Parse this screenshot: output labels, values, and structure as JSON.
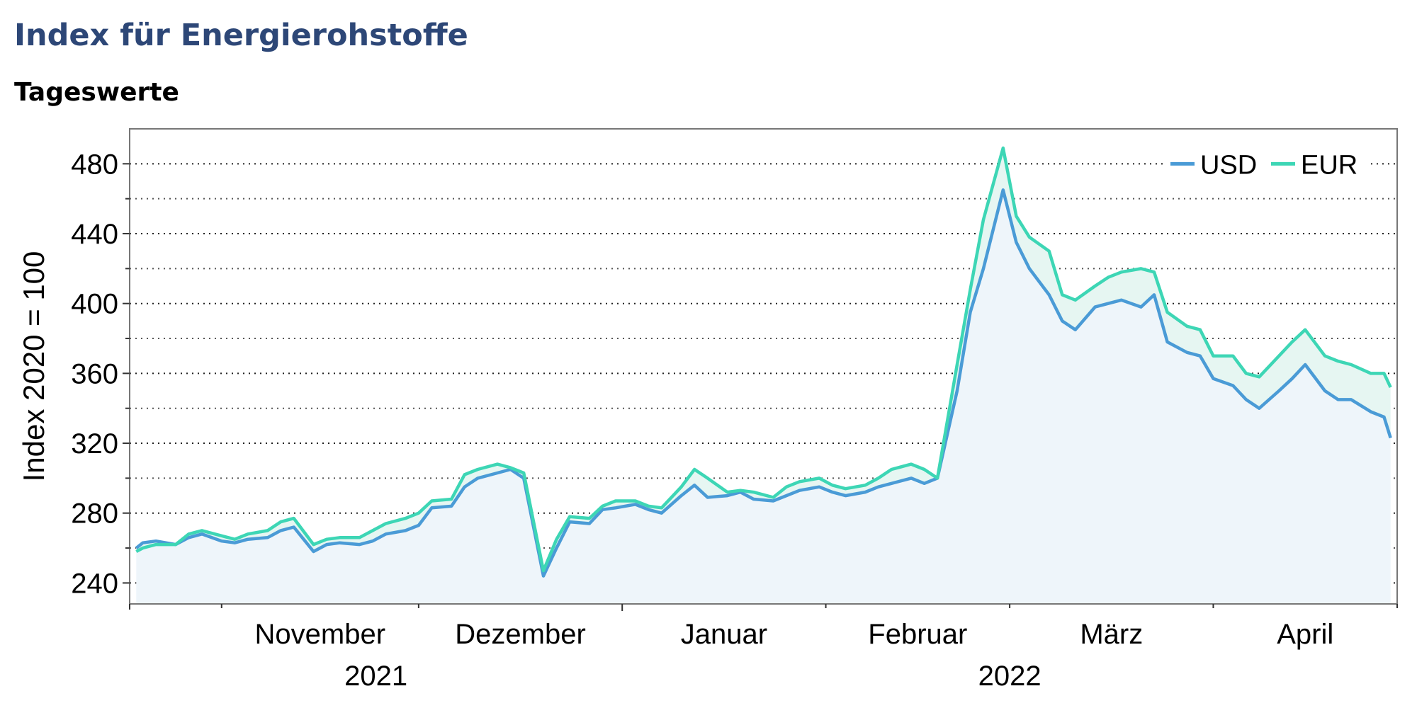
{
  "title": "Index für Energierohstoffe",
  "subtitle": "Tageswerte",
  "colors": {
    "title": "#2d4777",
    "usd": "#4a9bd6",
    "eur": "#3dd6b5",
    "fill": "#eef5fa",
    "frame": "#777777"
  },
  "chart_data": {
    "type": "line",
    "title": "Index für Energierohstoffe",
    "subtitle": "Tageswerte",
    "xlabel": "",
    "ylabel": "Index 2020 = 100",
    "ylim": [
      228,
      500
    ],
    "yticks": [
      240,
      280,
      320,
      360,
      400,
      440,
      480
    ],
    "yminor": [
      260,
      300,
      340,
      380,
      420,
      460
    ],
    "xlim": [
      "2021-10-18",
      "2022-04-29"
    ],
    "month_labels": [
      "November",
      "Dezember",
      "Januar",
      "Februar",
      "März",
      "April"
    ],
    "year_labels": [
      "2021",
      "2022"
    ],
    "grid": true,
    "legend_position": "top-right",
    "area_fill_below": "USD",
    "x": [
      "2021-10-19",
      "2021-10-20",
      "2021-10-22",
      "2021-10-25",
      "2021-10-27",
      "2021-10-29",
      "2021-11-01",
      "2021-11-03",
      "2021-11-05",
      "2021-11-08",
      "2021-11-10",
      "2021-11-12",
      "2021-11-15",
      "2021-11-17",
      "2021-11-19",
      "2021-11-22",
      "2021-11-24",
      "2021-11-26",
      "2021-11-29",
      "2021-12-01",
      "2021-12-03",
      "2021-12-06",
      "2021-12-08",
      "2021-12-10",
      "2021-12-13",
      "2021-12-15",
      "2021-12-17",
      "2021-12-20",
      "2021-12-22",
      "2021-12-24",
      "2021-12-27",
      "2021-12-29",
      "2021-12-31",
      "2022-01-03",
      "2022-01-05",
      "2022-01-07",
      "2022-01-10",
      "2022-01-12",
      "2022-01-14",
      "2022-01-17",
      "2022-01-19",
      "2022-01-21",
      "2022-01-24",
      "2022-01-26",
      "2022-01-28",
      "2022-01-31",
      "2022-02-02",
      "2022-02-04",
      "2022-02-07",
      "2022-02-09",
      "2022-02-11",
      "2022-02-14",
      "2022-02-16",
      "2022-02-18",
      "2022-02-21",
      "2022-02-23",
      "2022-02-25",
      "2022-02-28",
      "2022-03-02",
      "2022-03-04",
      "2022-03-07",
      "2022-03-09",
      "2022-03-11",
      "2022-03-14",
      "2022-03-16",
      "2022-03-18",
      "2022-03-21",
      "2022-03-23",
      "2022-03-25",
      "2022-03-28",
      "2022-03-30",
      "2022-04-01",
      "2022-04-04",
      "2022-04-06",
      "2022-04-08",
      "2022-04-11",
      "2022-04-13",
      "2022-04-15",
      "2022-04-18",
      "2022-04-20",
      "2022-04-22",
      "2022-04-25",
      "2022-04-27",
      "2022-04-28"
    ],
    "series": [
      {
        "name": "USD",
        "values": [
          260,
          263,
          264,
          262,
          266,
          268,
          264,
          263,
          265,
          266,
          270,
          272,
          258,
          262,
          263,
          262,
          264,
          268,
          270,
          273,
          283,
          284,
          295,
          300,
          303,
          305,
          300,
          244,
          260,
          275,
          274,
          282,
          283,
          285,
          282,
          280,
          290,
          296,
          289,
          290,
          292,
          288,
          287,
          290,
          293,
          295,
          292,
          290,
          292,
          295,
          297,
          300,
          297,
          300,
          350,
          395,
          420,
          465,
          435,
          420,
          405,
          390,
          385,
          398,
          400,
          402,
          398,
          405,
          378,
          372,
          370,
          357,
          353,
          345,
          340,
          350,
          357,
          365,
          350,
          345,
          345,
          338,
          335,
          323
        ],
        "color": "#4a9bd6"
      },
      {
        "name": "EUR",
        "values": [
          258,
          260,
          262,
          262,
          268,
          270,
          267,
          265,
          268,
          270,
          275,
          277,
          262,
          265,
          266,
          266,
          270,
          274,
          277,
          280,
          287,
          288,
          302,
          305,
          308,
          306,
          303,
          247,
          265,
          278,
          277,
          284,
          287,
          287,
          284,
          283,
          295,
          305,
          300,
          292,
          293,
          292,
          289,
          295,
          298,
          300,
          296,
          294,
          296,
          300,
          305,
          308,
          305,
          300,
          365,
          408,
          448,
          489,
          450,
          438,
          430,
          405,
          402,
          410,
          415,
          418,
          420,
          418,
          395,
          387,
          385,
          370,
          370,
          360,
          358,
          370,
          378,
          385,
          370,
          367,
          365,
          360,
          360,
          352
        ],
        "color": "#3dd6b5"
      }
    ]
  }
}
